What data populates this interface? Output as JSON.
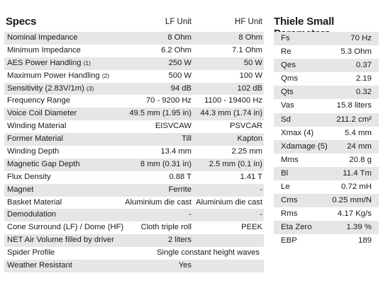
{
  "specs": {
    "title": "Specs",
    "col_lf": "LF Unit",
    "col_hf": "HF Unit",
    "rows": [
      {
        "label": "Nominal Impedance",
        "note": "",
        "lf": "8 Ohm",
        "hf": "8 Ohm"
      },
      {
        "label": "Minimum Impedance",
        "note": "",
        "lf": "6.2 Ohm",
        "hf": "7.1 Ohm"
      },
      {
        "label": "AES Power Handling",
        "note": "(1)",
        "lf": "250 W",
        "hf": "50 W"
      },
      {
        "label": "Maximum Power Handling",
        "note": "(2)",
        "lf": "500 W",
        "hf": "100 W"
      },
      {
        "label": "Sensitivity (2.83V/1m)",
        "note": "(3)",
        "lf": "94 dB",
        "hf": "102 dB"
      },
      {
        "label": "Frequency Range",
        "note": "",
        "lf": "70 - 9200 Hz",
        "hf": "1100 - 19400 Hz"
      },
      {
        "label": "Voice Coil Diameter",
        "note": "",
        "lf": "49.5 mm (1.95 in)",
        "hf": "44.3 mm (1.74 in)"
      },
      {
        "label": "Winding Material",
        "note": "",
        "lf": "EISVCAW",
        "hf": "PSVCAR"
      },
      {
        "label": "Former Material",
        "note": "",
        "lf": "Till",
        "hf": "Kapton"
      },
      {
        "label": "Winding Depth",
        "note": "",
        "lf": "13.4 mm",
        "hf": "2.25 mm"
      },
      {
        "label": "Magnetic Gap Depth",
        "note": "",
        "lf": "8 mm (0.31 in)",
        "hf": "2.5 mm (0.1 in)"
      },
      {
        "label": "Flux Density",
        "note": "",
        "lf": "0.88 T",
        "hf": "1.41 T"
      },
      {
        "label": "Magnet",
        "note": "",
        "lf": "Ferrite",
        "hf": "-"
      },
      {
        "label": "Basket Material",
        "note": "",
        "lf": "Aluminium die cast",
        "hf": "Aluminium die cast"
      },
      {
        "label": "Demodulation",
        "note": "",
        "lf": "-",
        "hf": "-"
      },
      {
        "label": "Cone Surround (LF) / Dome (HF)",
        "note": "",
        "lf": "Cloth triple roll",
        "hf": "PEEK"
      },
      {
        "label": "NET Air Volume filled by driver",
        "note": "",
        "lf": "2 liters",
        "hf": ""
      },
      {
        "label": "Spider Profile",
        "note": "",
        "lf": "",
        "hf": "",
        "wide": "Single constant height waves"
      },
      {
        "label": "Weather Resistant",
        "note": "",
        "lf": "Yes",
        "hf": ""
      }
    ]
  },
  "thiele_small": {
    "title": "Thiele Small Parameters",
    "rows": [
      {
        "label": "Fs",
        "value": "70 Hz"
      },
      {
        "label": "Re",
        "value": "5.3 Ohm"
      },
      {
        "label": "Qes",
        "value": "0.37"
      },
      {
        "label": "Qms",
        "value": "2.19"
      },
      {
        "label": "Qts",
        "value": "0.32"
      },
      {
        "label": "Vas",
        "value": "15.8 liters"
      },
      {
        "label": "Sd",
        "value": "211.2 cm²"
      },
      {
        "label": "Xmax (4)",
        "value": "5.4 mm"
      },
      {
        "label": "Xdamage (5)",
        "value": "24 mm"
      },
      {
        "label": "Mms",
        "value": "20.8 g"
      },
      {
        "label": "Bl",
        "value": "11.4 Tm"
      },
      {
        "label": "Le",
        "value": "0.72 mH"
      },
      {
        "label": "Cms",
        "value": "0.25 mm/N"
      },
      {
        "label": "Rms",
        "value": "4.17 Kg/s"
      },
      {
        "label": "Eta Zero",
        "value": "1.39 %"
      },
      {
        "label": "EBP",
        "value": "189"
      }
    ]
  }
}
